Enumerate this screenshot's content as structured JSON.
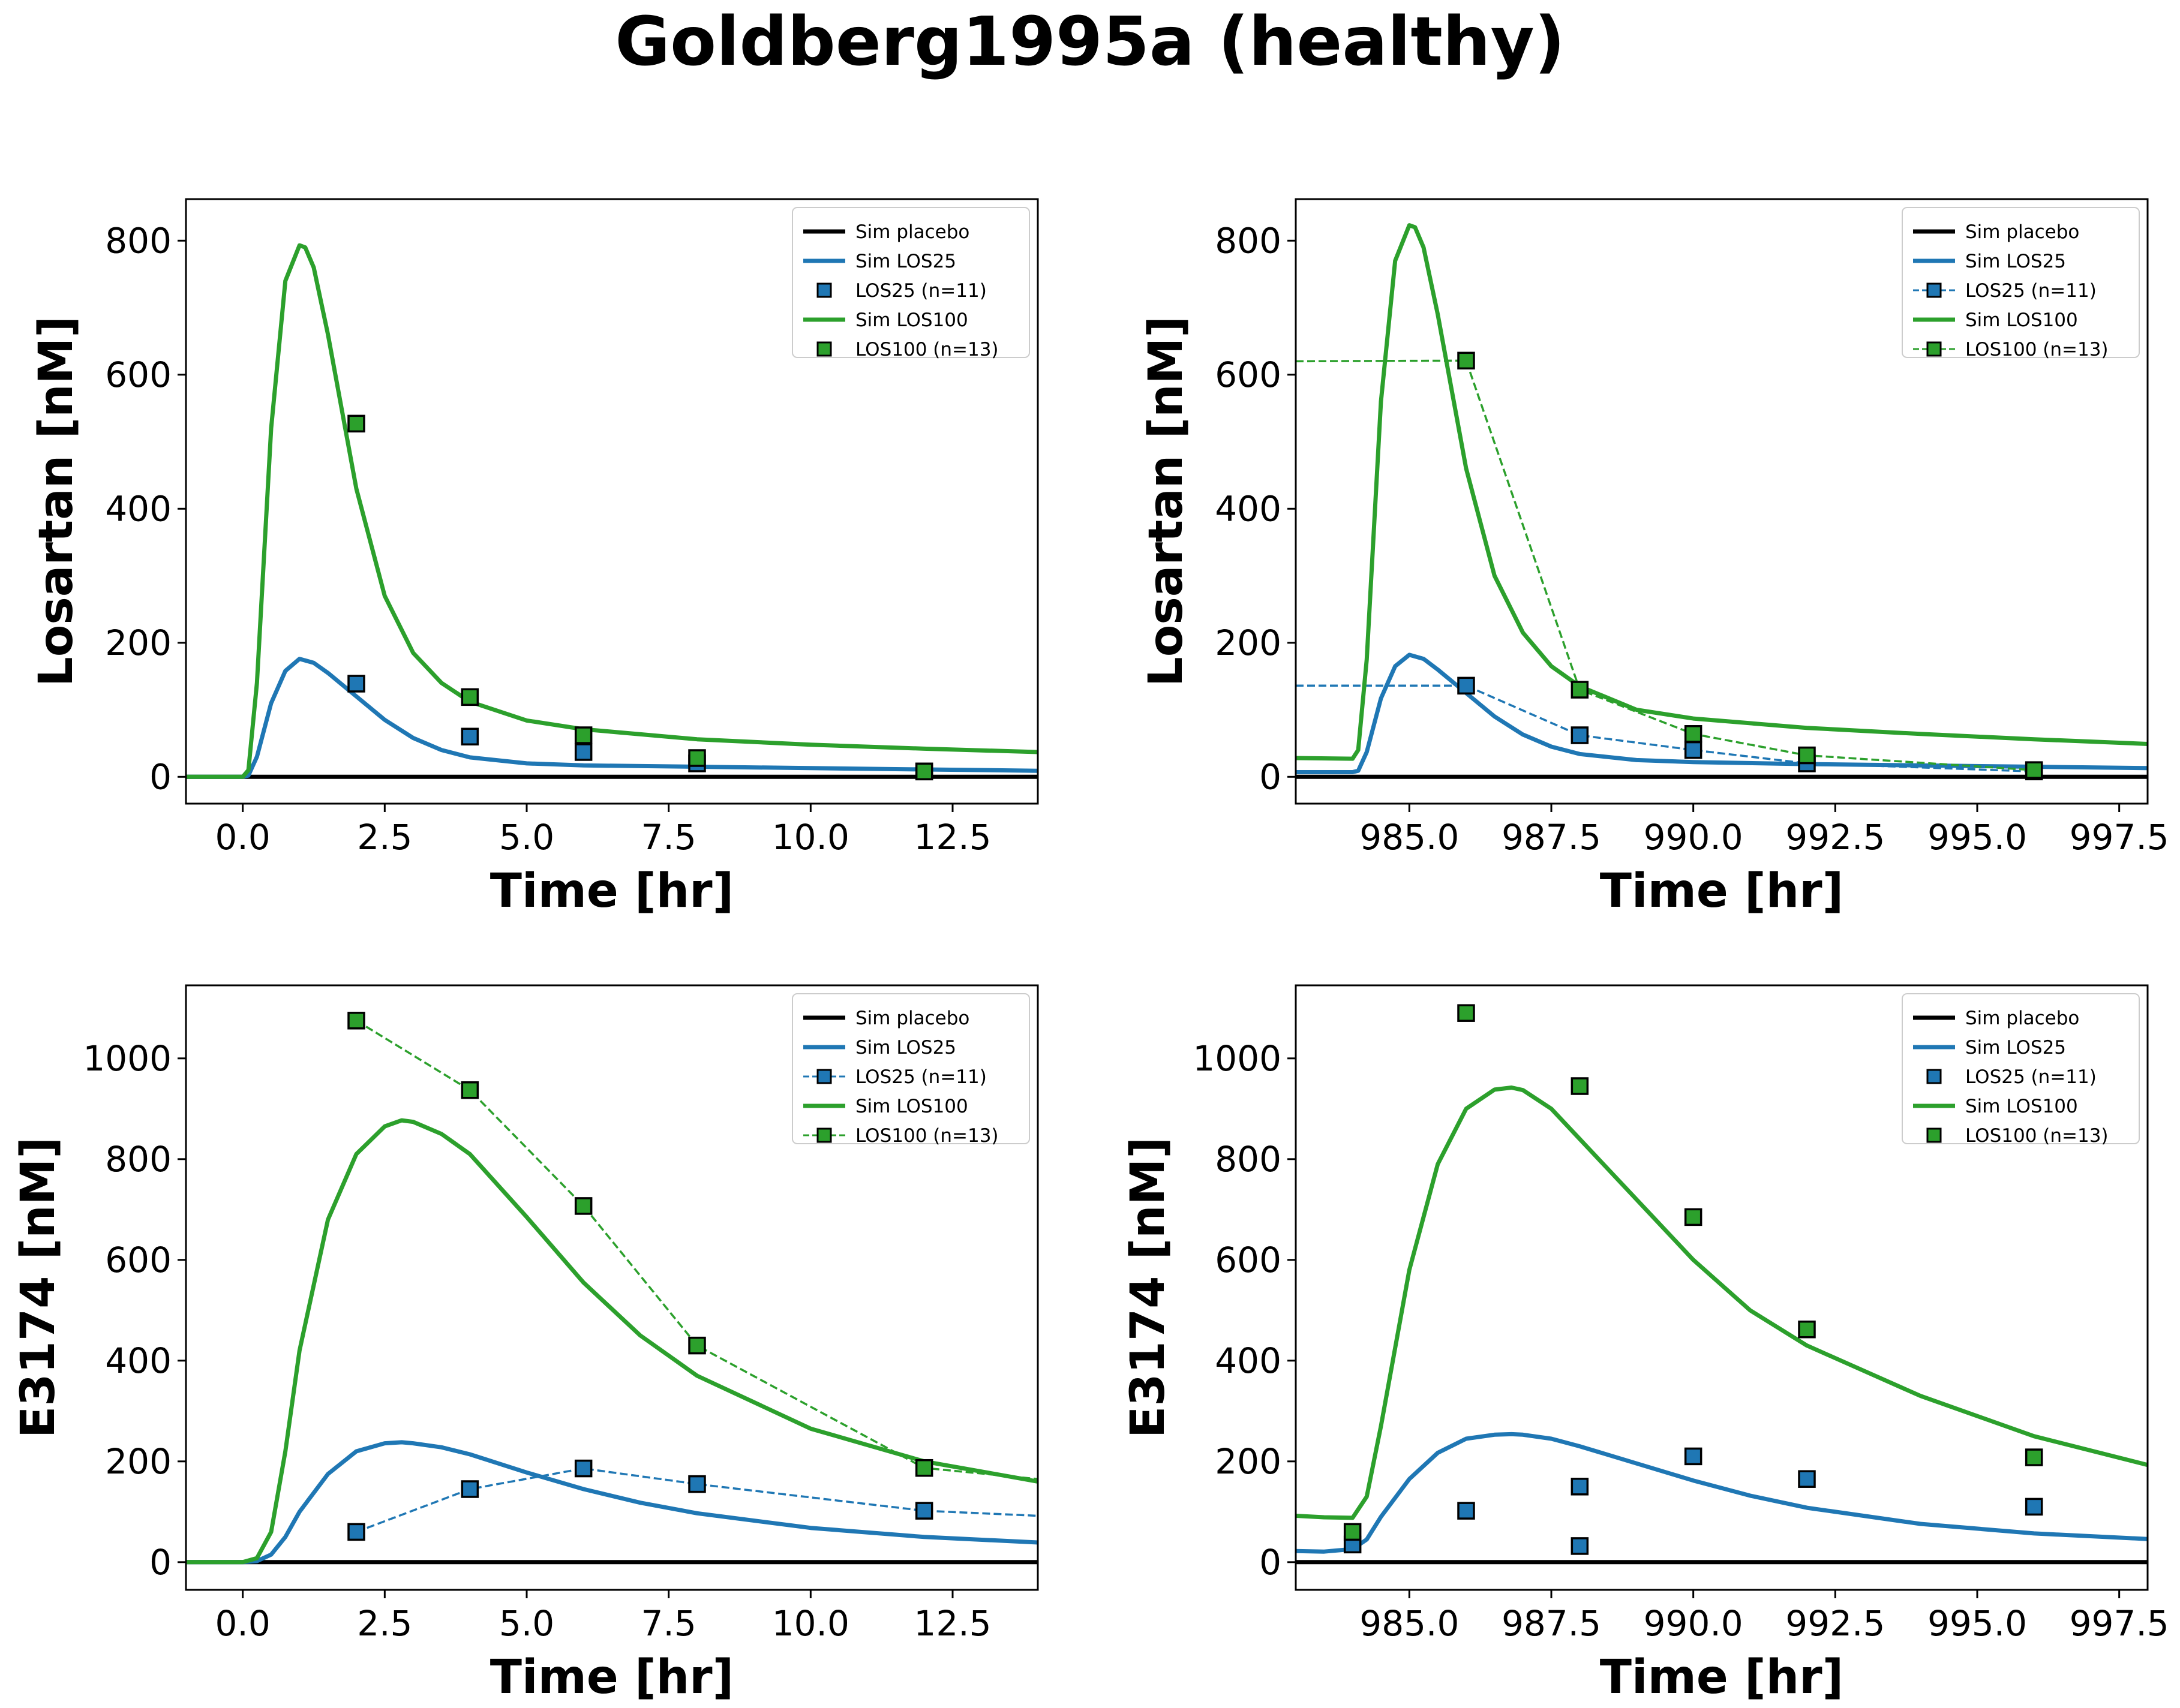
{
  "figure": {
    "title": "Goldberg1995a (healthy)"
  },
  "colors": {
    "placebo": "#000000",
    "LOS25": "#1f77b4",
    "LOS100": "#2ca02c"
  },
  "chart_data": [
    {
      "type": "line",
      "panel": "top-left",
      "xlabel": "Time [hr]",
      "ylabel": "Losartan [nM]",
      "xlim": [
        -1,
        14
      ],
      "ylim": [
        -40,
        862
      ],
      "xticks": [
        0,
        2.5,
        5,
        7.5,
        10,
        12.5
      ],
      "xtick_labels": [
        "0.0",
        "2.5",
        "5.0",
        "7.5",
        "10.0",
        "12.5"
      ],
      "yticks": [
        0,
        200,
        400,
        600,
        800
      ],
      "ytick_labels": [
        "0",
        "200",
        "400",
        "600",
        "800"
      ],
      "legend": [
        "Sim placebo",
        "Sim LOS25",
        "LOS25 (n=11)",
        "Sim LOS100",
        "LOS100 (n=13)"
      ],
      "legend_position": "top-right",
      "series": [
        {
          "name": "Sim placebo",
          "kind": "sim",
          "color": "#000000",
          "x": [
            -1,
            14
          ],
          "y": [
            0,
            0
          ]
        },
        {
          "name": "Sim LOS25",
          "kind": "sim",
          "color": "#1f77b4",
          "x": [
            -1,
            0,
            0.1,
            0.25,
            0.5,
            0.75,
            1.0,
            1.25,
            1.5,
            2.0,
            2.5,
            3.0,
            3.5,
            4.0,
            5.0,
            6.0,
            8.0,
            10.0,
            12.0,
            14.0
          ],
          "y": [
            0,
            0,
            2,
            30,
            110,
            158,
            176,
            170,
            155,
            120,
            85,
            58,
            40,
            29,
            20,
            17,
            15,
            13,
            11,
            9
          ]
        },
        {
          "name": "LOS25 (n=11)",
          "kind": "data",
          "connected": false,
          "color": "#1f77b4",
          "x": [
            2,
            4,
            6,
            8,
            12
          ],
          "y": [
            139,
            60,
            37,
            20,
            8
          ]
        },
        {
          "name": "Sim LOS100",
          "kind": "sim",
          "color": "#2ca02c",
          "x": [
            -1,
            0,
            0.1,
            0.25,
            0.5,
            0.75,
            1.0,
            1.1,
            1.25,
            1.5,
            2.0,
            2.5,
            3.0,
            3.5,
            4.0,
            5.0,
            6.0,
            8.0,
            10.0,
            12.0,
            14.0
          ],
          "y": [
            0,
            0,
            10,
            140,
            520,
            740,
            793,
            790,
            760,
            660,
            430,
            270,
            185,
            140,
            112,
            84,
            71,
            56,
            48,
            42,
            37
          ]
        },
        {
          "name": "LOS100 (n=13)",
          "kind": "data",
          "connected": false,
          "color": "#2ca02c",
          "x": [
            2,
            4,
            6,
            8,
            12
          ],
          "y": [
            527,
            119,
            62,
            28,
            8
          ]
        }
      ]
    },
    {
      "type": "line",
      "panel": "top-right",
      "xlabel": "Time [hr]",
      "ylabel": "Losartan [nM]",
      "xlim": [
        983,
        998
      ],
      "ylim": [
        -40,
        862
      ],
      "xticks": [
        985,
        987.5,
        990,
        992.5,
        995,
        997.5
      ],
      "xtick_labels": [
        "985.0",
        "987.5",
        "990.0",
        "992.5",
        "995.0",
        "997.5"
      ],
      "yticks": [
        0,
        200,
        400,
        600,
        800
      ],
      "ytick_labels": [
        "0",
        "200",
        "400",
        "600",
        "800"
      ],
      "legend": [
        "Sim placebo",
        "Sim LOS25",
        "LOS25 (n=11)",
        "Sim LOS100",
        "LOS100 (n=13)"
      ],
      "legend_position": "top-right",
      "series": [
        {
          "name": "Sim placebo",
          "kind": "sim",
          "color": "#000000",
          "x": [
            983,
            998
          ],
          "y": [
            0,
            0
          ]
        },
        {
          "name": "Sim LOS25",
          "kind": "sim",
          "color": "#1f77b4",
          "x": [
            983,
            984,
            984.1,
            984.25,
            984.5,
            984.75,
            985.0,
            985.25,
            985.5,
            986.0,
            986.5,
            987.0,
            987.5,
            988.0,
            989.0,
            990.0,
            992.0,
            994.0,
            996.0,
            998.0
          ],
          "y": [
            7,
            7,
            9,
            37,
            117,
            165,
            182,
            176,
            160,
            125,
            90,
            63,
            45,
            34,
            25,
            22,
            19,
            17,
            15,
            13
          ]
        },
        {
          "name": "LOS25 (n=11)",
          "kind": "data",
          "connected": true,
          "color": "#1f77b4",
          "x": [
            983,
            986,
            988,
            990,
            992,
            996
          ],
          "y": [
            136,
            136,
            62,
            40,
            20,
            8
          ]
        },
        {
          "name": "Sim LOS100",
          "kind": "sim",
          "color": "#2ca02c",
          "x": [
            983,
            984,
            984.1,
            984.25,
            984.5,
            984.75,
            985.0,
            985.1,
            985.25,
            985.5,
            986.0,
            986.5,
            987.0,
            987.5,
            988.0,
            989.0,
            990.0,
            992.0,
            994.0,
            996.0,
            998.0
          ],
          "y": [
            28,
            27,
            40,
            175,
            560,
            770,
            823,
            820,
            790,
            690,
            460,
            300,
            215,
            165,
            135,
            100,
            87,
            73,
            64,
            56,
            49
          ]
        },
        {
          "name": "LOS100 (n=13)",
          "kind": "data",
          "connected": true,
          "color": "#2ca02c",
          "x": [
            983,
            986,
            988,
            990,
            992,
            996
          ],
          "y": [
            620,
            621,
            130,
            64,
            32,
            10
          ]
        }
      ]
    },
    {
      "type": "line",
      "panel": "bottom-left",
      "xlabel": "Time [hr]",
      "ylabel": "E3174 [nM]",
      "xlim": [
        -1,
        14
      ],
      "ylim": [
        -55,
        1145
      ],
      "xticks": [
        0,
        2.5,
        5,
        7.5,
        10,
        12.5
      ],
      "xtick_labels": [
        "0.0",
        "2.5",
        "5.0",
        "7.5",
        "10.0",
        "12.5"
      ],
      "yticks": [
        0,
        200,
        400,
        600,
        800,
        1000
      ],
      "ytick_labels": [
        "0",
        "200",
        "400",
        "600",
        "800",
        "1000"
      ],
      "legend": [
        "Sim placebo",
        "Sim LOS25",
        "LOS25 (n=11)",
        "Sim LOS100",
        "LOS100 (n=13)"
      ],
      "legend_position": "top-right",
      "series": [
        {
          "name": "Sim placebo",
          "kind": "sim",
          "color": "#000000",
          "x": [
            -1,
            14
          ],
          "y": [
            0,
            0
          ]
        },
        {
          "name": "Sim LOS25",
          "kind": "sim",
          "color": "#1f77b4",
          "x": [
            -1,
            0,
            0.25,
            0.5,
            0.75,
            1.0,
            1.5,
            2.0,
            2.5,
            2.8,
            3.0,
            3.5,
            4.0,
            5.0,
            6.0,
            7.0,
            8.0,
            10.0,
            12.0,
            14.0
          ],
          "y": [
            0,
            0,
            2,
            15,
            50,
            100,
            175,
            220,
            236,
            238,
            236,
            228,
            214,
            178,
            145,
            118,
            97,
            68,
            50,
            39
          ]
        },
        {
          "name": "LOS25 (n=11)",
          "kind": "data",
          "connected": true,
          "color": "#1f77b4",
          "x": [
            2,
            4,
            6,
            8,
            12,
            14
          ],
          "y": [
            60,
            145,
            186,
            155,
            102,
            92
          ]
        },
        {
          "name": "Sim LOS100",
          "kind": "sim",
          "color": "#2ca02c",
          "x": [
            -1,
            0,
            0.25,
            0.5,
            0.75,
            1.0,
            1.5,
            2.0,
            2.5,
            2.8,
            3.0,
            3.5,
            4.0,
            5.0,
            6.0,
            7.0,
            8.0,
            10.0,
            12.0,
            14.0
          ],
          "y": [
            0,
            0,
            8,
            60,
            220,
            420,
            680,
            810,
            865,
            877,
            874,
            850,
            810,
            685,
            555,
            450,
            370,
            265,
            200,
            160
          ]
        },
        {
          "name": "LOS100 (n=13)",
          "kind": "data",
          "connected": true,
          "color": "#2ca02c",
          "x": [
            2,
            4,
            6,
            8,
            12,
            14
          ],
          "y": [
            1075,
            937,
            707,
            430,
            187,
            165
          ]
        }
      ]
    },
    {
      "type": "line",
      "panel": "bottom-right",
      "xlabel": "Time [hr]",
      "ylabel": "E3174 [nM]",
      "xlim": [
        983,
        998
      ],
      "ylim": [
        -55,
        1145
      ],
      "xticks": [
        985,
        987.5,
        990,
        992.5,
        995,
        997.5
      ],
      "xtick_labels": [
        "985.0",
        "987.5",
        "990.0",
        "992.5",
        "995.0",
        "997.5"
      ],
      "yticks": [
        0,
        200,
        400,
        600,
        800,
        1000
      ],
      "ytick_labels": [
        "0",
        "200",
        "400",
        "600",
        "800",
        "1000"
      ],
      "legend": [
        "Sim placebo",
        "Sim LOS25",
        "LOS25 (n=11)",
        "Sim LOS100",
        "LOS100 (n=13)"
      ],
      "legend_position": "top-right",
      "series": [
        {
          "name": "Sim placebo",
          "kind": "sim",
          "color": "#000000",
          "x": [
            983,
            998
          ],
          "y": [
            0,
            0
          ]
        },
        {
          "name": "Sim LOS25",
          "kind": "sim",
          "color": "#1f77b4",
          "x": [
            983,
            983.5,
            984,
            984.25,
            984.5,
            985.0,
            985.5,
            986.0,
            986.5,
            986.8,
            987.0,
            987.5,
            988.0,
            989.0,
            990.0,
            991.0,
            992.0,
            994.0,
            996.0,
            998.0
          ],
          "y": [
            22,
            21,
            26,
            45,
            90,
            165,
            217,
            245,
            253,
            254,
            253,
            245,
            230,
            196,
            162,
            132,
            108,
            76,
            57,
            46
          ]
        },
        {
          "name": "LOS25 (n=11)",
          "kind": "data",
          "connected": false,
          "color": "#1f77b4",
          "x": [
            984,
            986,
            988,
            988,
            990,
            992,
            996
          ],
          "y": [
            35,
            102,
            150,
            32,
            210,
            165,
            110
          ]
        },
        {
          "name": "Sim LOS100",
          "kind": "sim",
          "color": "#2ca02c",
          "x": [
            983,
            983.5,
            984,
            984.25,
            984.5,
            985.0,
            985.5,
            986.0,
            986.5,
            986.8,
            987.0,
            987.5,
            988.0,
            989.0,
            990.0,
            991.0,
            992.0,
            994.0,
            996.0,
            998.0
          ],
          "y": [
            92,
            89,
            88,
            130,
            270,
            580,
            790,
            900,
            938,
            942,
            937,
            900,
            840,
            720,
            600,
            500,
            430,
            330,
            250,
            193
          ]
        },
        {
          "name": "LOS100 (n=13)",
          "kind": "data",
          "connected": false,
          "color": "#2ca02c",
          "x": [
            984,
            986,
            988,
            990,
            992,
            996
          ],
          "y": [
            60,
            1090,
            945,
            685,
            462,
            208
          ]
        }
      ]
    }
  ]
}
